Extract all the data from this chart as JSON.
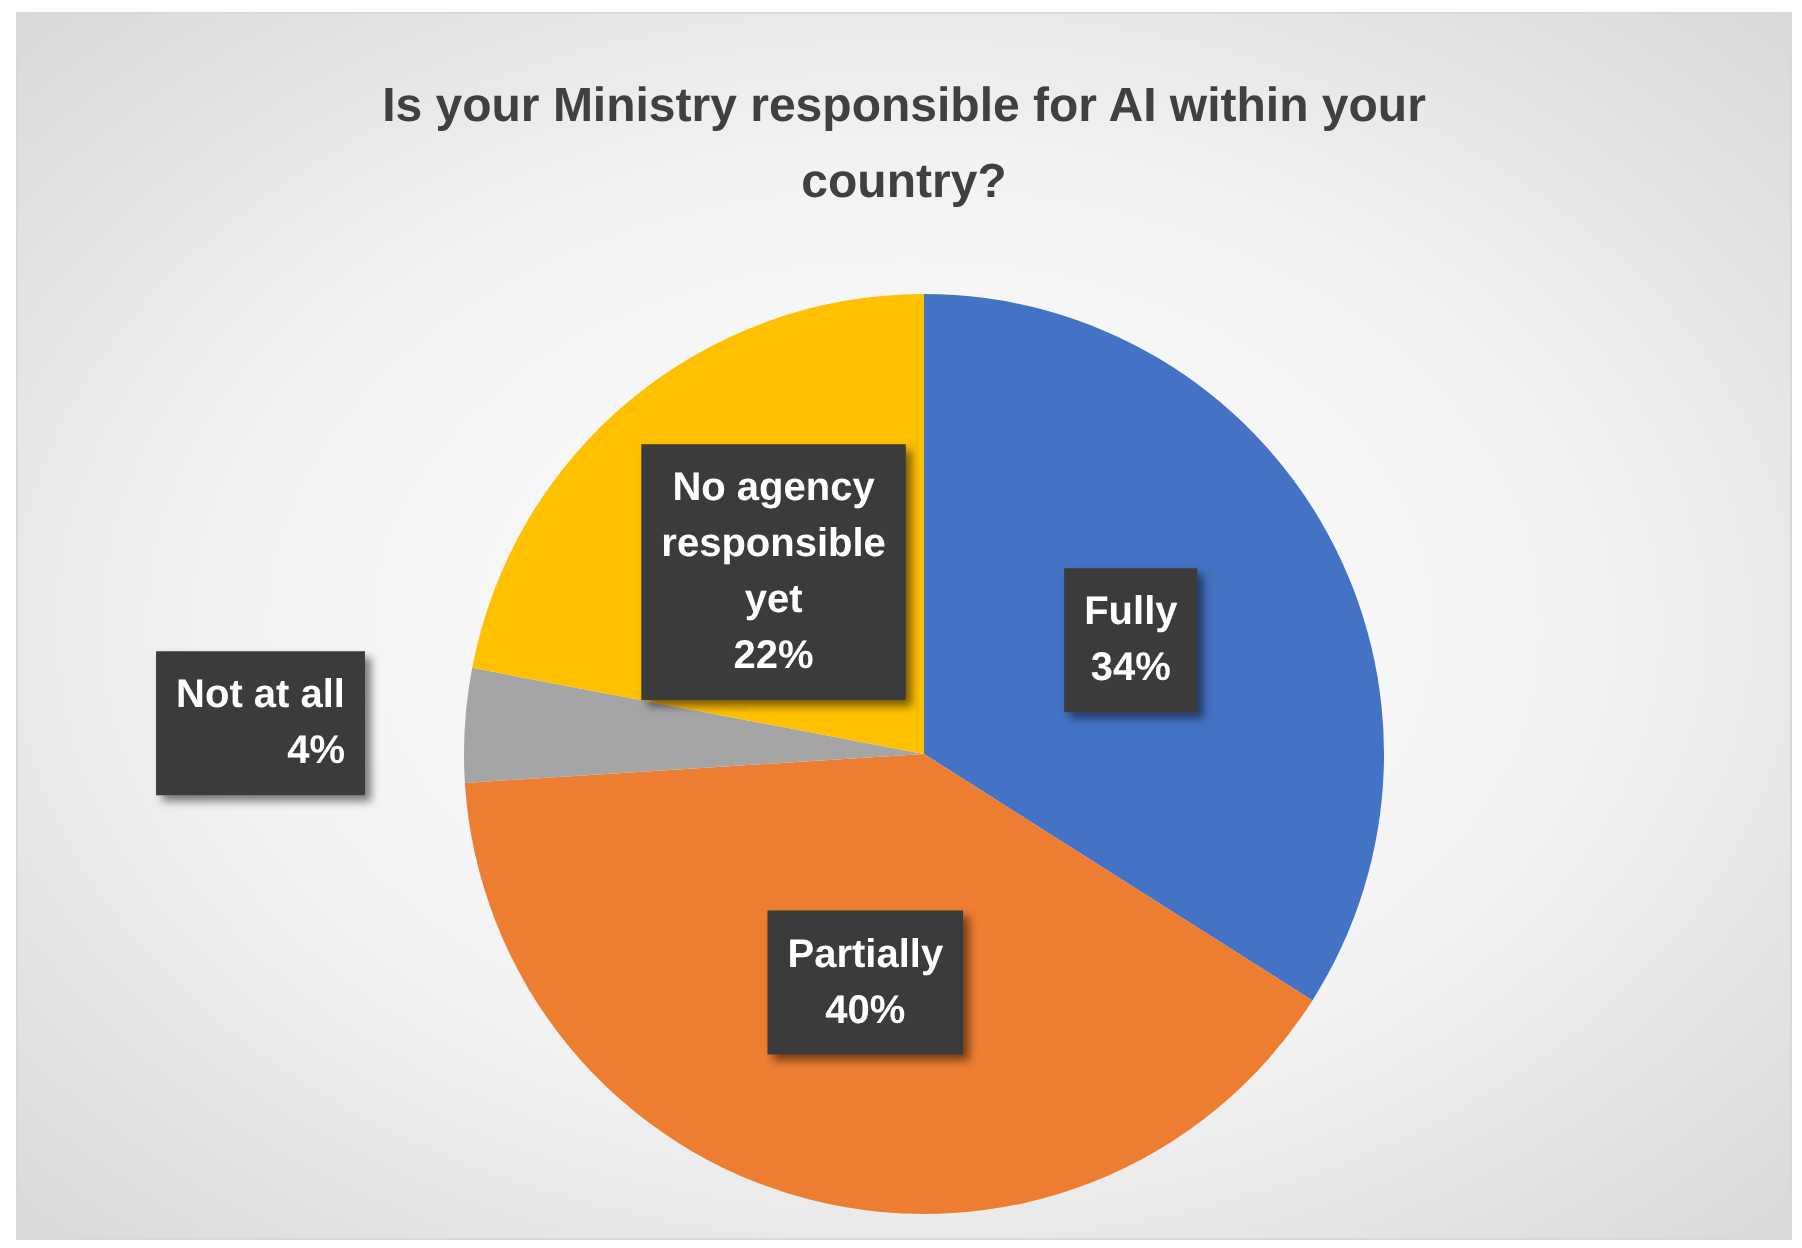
{
  "chart_data": {
    "type": "pie",
    "title": "Is your Ministry responsible for AI within your country?",
    "categories": [
      "Fully",
      "Partially",
      "Not at all",
      "No agency responsible yet"
    ],
    "values": [
      34,
      40,
      4,
      22
    ],
    "value_labels": [
      "34%",
      "40%",
      "4%",
      "22%"
    ],
    "colors": [
      "#4472c4",
      "#ed7d31",
      "#a5a5a5",
      "#ffc000"
    ],
    "legend": false
  }
}
